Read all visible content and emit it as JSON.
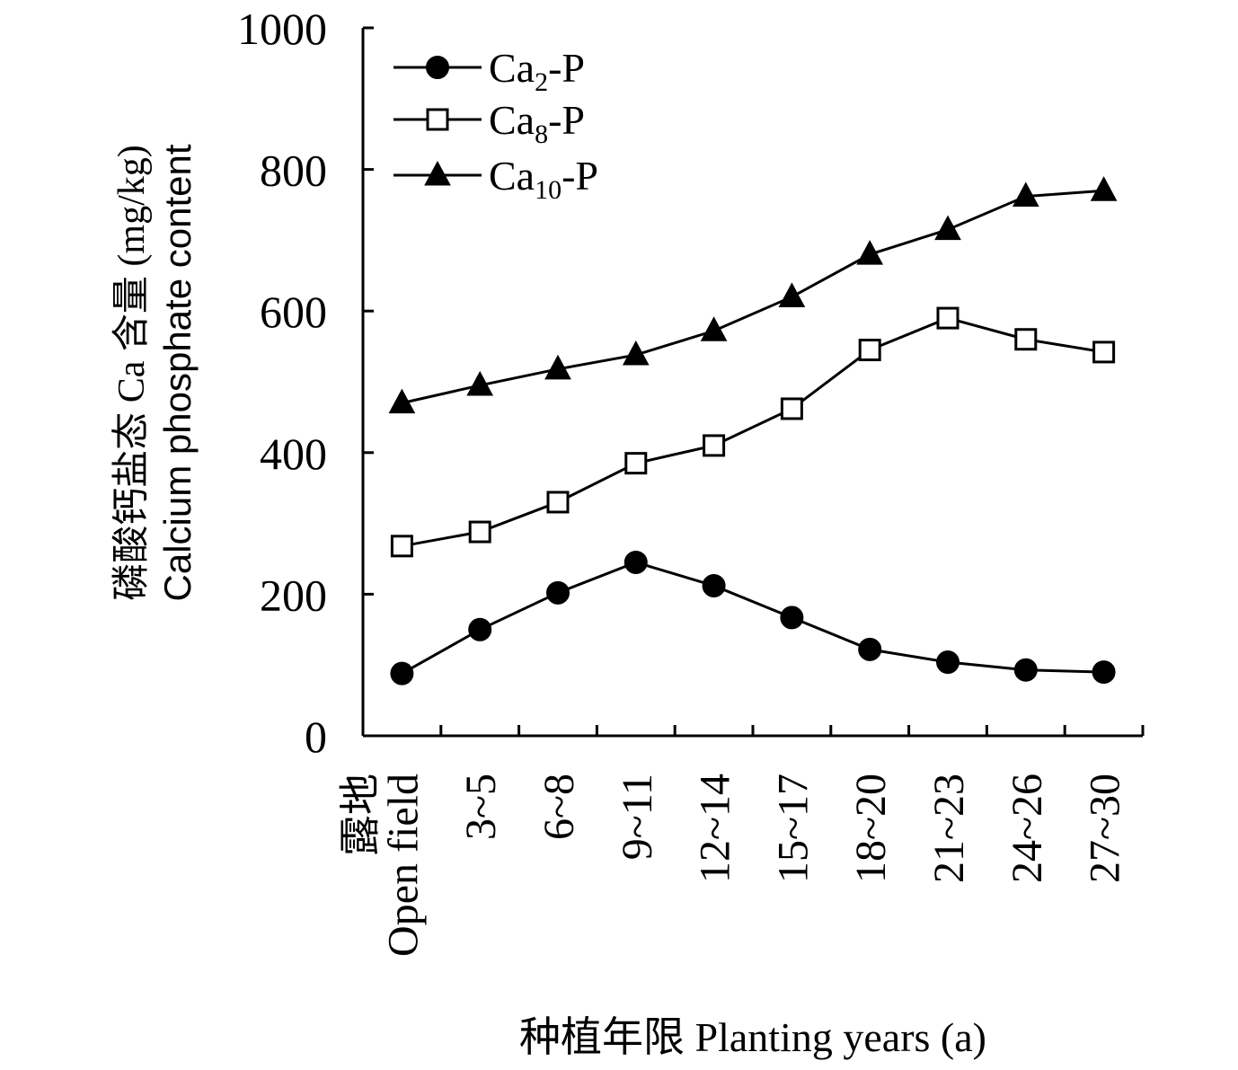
{
  "chart_data": {
    "type": "line",
    "categories_zh": [
      "露地",
      "",
      "",
      "",
      "",
      "",
      "",
      "",
      "",
      ""
    ],
    "categories": [
      "Open field",
      "3~5",
      "6~8",
      "9~11",
      "12~14",
      "15~17",
      "18~20",
      "21~23",
      "24~26",
      "27~30"
    ],
    "series": [
      {
        "name_base": "Ca",
        "name_sub": "2",
        "name_suffix": "-P",
        "marker": "circle-filled",
        "values": [
          88,
          150,
          202,
          245,
          212,
          167,
          122,
          104,
          93,
          90
        ]
      },
      {
        "name_base": "Ca",
        "name_sub": "8",
        "name_suffix": "-P",
        "marker": "square-open",
        "values": [
          268,
          288,
          330,
          385,
          410,
          462,
          545,
          590,
          560,
          542
        ]
      },
      {
        "name_base": "Ca",
        "name_sub": "10",
        "name_suffix": "-P",
        "marker": "triangle-filled",
        "values": [
          470,
          495,
          518,
          538,
          572,
          620,
          680,
          715,
          762,
          770
        ]
      }
    ],
    "ylim": [
      0,
      1000
    ],
    "yticks": [
      0,
      200,
      400,
      600,
      800,
      1000
    ],
    "ylabel_zh": "磷酸钙盐态 Ca 含量 (mg/kg)",
    "ylabel_en": "Calcium phosphate content",
    "xlabel": "种植年限 Planting years (a)",
    "legend_position": "top-left",
    "grid": false,
    "colors": {
      "line": "#000000",
      "marker_fill": "#000000",
      "open_fill": "#ffffff"
    }
  }
}
